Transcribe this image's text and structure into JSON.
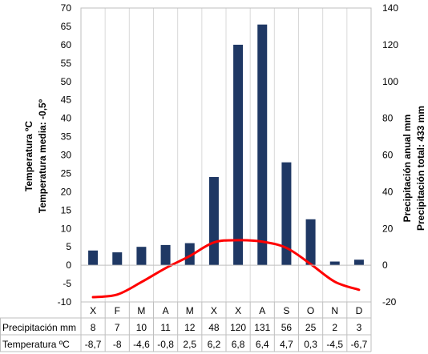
{
  "chart_data": {
    "type": "bar-line",
    "categories": [
      "X",
      "F",
      "M",
      "A",
      "M",
      "X",
      "X",
      "A",
      "S",
      "O",
      "N",
      "D"
    ],
    "series": [
      {
        "name": "Precipitación mm",
        "type": "bar",
        "axis": "right",
        "color": "#1f3864",
        "values": [
          8,
          7,
          10,
          11,
          12,
          48,
          120,
          131,
          56,
          25,
          2,
          3
        ],
        "value_labels": [
          "8",
          "7",
          "10",
          "11",
          "12",
          "48",
          "120",
          "131",
          "56",
          "25",
          "2",
          "3"
        ]
      },
      {
        "name": "Temperatura ºC",
        "type": "line",
        "axis": "left",
        "color": "#ff0000",
        "values": [
          -8.7,
          -8,
          -4.6,
          -0.8,
          2.5,
          6.2,
          6.8,
          6.4,
          4.7,
          0.3,
          -4.5,
          -6.7
        ],
        "value_labels": [
          "-8,7",
          "-8",
          "-4,6",
          "-0,8",
          "2,5",
          "6,2",
          "6,8",
          "6,4",
          "4,7",
          "0,3",
          "-4,5",
          "-6,7"
        ]
      }
    ],
    "left_axis": {
      "title_line1": "Temperatura ºC",
      "title_line2": "Temperatura media: -0,5º",
      "min": -10,
      "max": 70,
      "step": 5
    },
    "right_axis": {
      "title_line1": "Precipitación anual mm",
      "title_line2": "Precipitación total: 433 mm",
      "min": -20,
      "max": 140,
      "step": 20
    },
    "grid": "vertical",
    "data_table": true
  }
}
